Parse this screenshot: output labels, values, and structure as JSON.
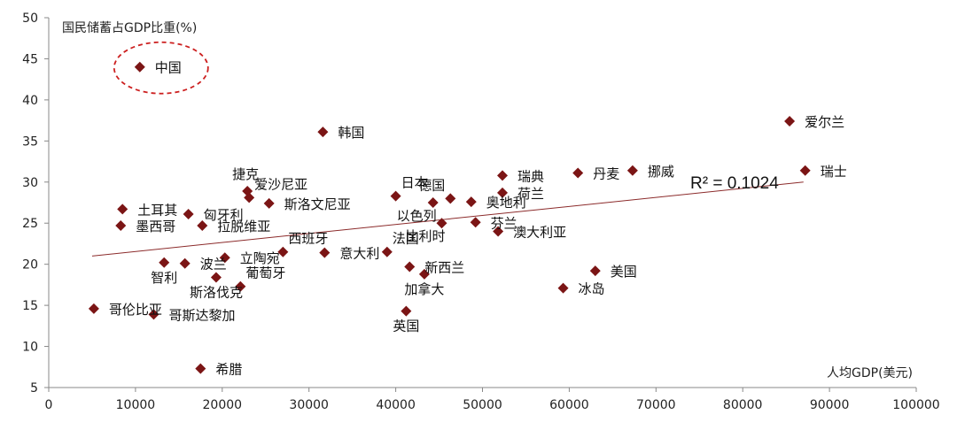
{
  "chart_data": {
    "type": "scatter",
    "title": "",
    "xlabel": "人均GDP(美元)",
    "ylabel": "国民储蓄占GDP比重(%)",
    "xlim": [
      0,
      100000
    ],
    "ylim": [
      5,
      50
    ],
    "x_ticks": [
      0,
      10000,
      20000,
      30000,
      40000,
      50000,
      60000,
      70000,
      80000,
      90000,
      100000
    ],
    "y_ticks": [
      5,
      10,
      15,
      20,
      25,
      30,
      35,
      40,
      45,
      50
    ],
    "grid": false,
    "marker": "diamond",
    "marker_color": "#7b1515",
    "trendline": {
      "type": "linear",
      "from": [
        5000,
        21
      ],
      "to": [
        87000,
        30
      ],
      "color": "#8b2a2a"
    },
    "r_squared_label": "R² = 0.1024",
    "highlight": {
      "point": "中国",
      "style": "dashed-ellipse",
      "color": "#cc1f1f"
    },
    "points": [
      {
        "name": "中国",
        "x": 10500,
        "y": 44.0,
        "label_pos": "right"
      },
      {
        "name": "韩国",
        "x": 31600,
        "y": 36.1,
        "label_pos": "right"
      },
      {
        "name": "爱尔兰",
        "x": 85400,
        "y": 37.4,
        "label_pos": "right"
      },
      {
        "name": "瑞士",
        "x": 87200,
        "y": 31.4,
        "label_pos": "right"
      },
      {
        "name": "挪威",
        "x": 67300,
        "y": 31.4,
        "label_pos": "right"
      },
      {
        "name": "丹麦",
        "x": 61000,
        "y": 31.1,
        "label_pos": "right"
      },
      {
        "name": "瑞典",
        "x": 52300,
        "y": 30.8,
        "label_pos": "right"
      },
      {
        "name": "荷兰",
        "x": 52300,
        "y": 28.7,
        "label_pos": "right"
      },
      {
        "name": "日本",
        "x": 40000,
        "y": 28.3,
        "label_pos": "above-right"
      },
      {
        "name": "德国",
        "x": 46300,
        "y": 28.0,
        "label_pos": "above-left"
      },
      {
        "name": "奥地利",
        "x": 48700,
        "y": 27.6,
        "label_pos": "right"
      },
      {
        "name": "以色列",
        "x": 44300,
        "y": 27.5,
        "label_pos": "below-left"
      },
      {
        "name": "芬兰",
        "x": 49200,
        "y": 25.1,
        "label_pos": "right"
      },
      {
        "name": "比利时",
        "x": 45300,
        "y": 25.0,
        "label_pos": "below-left"
      },
      {
        "name": "澳大利亚",
        "x": 51800,
        "y": 24.0,
        "label_pos": "right"
      },
      {
        "name": "美国",
        "x": 63000,
        "y": 19.2,
        "label_pos": "right"
      },
      {
        "name": "冰岛",
        "x": 59300,
        "y": 17.1,
        "label_pos": "right"
      },
      {
        "name": "法国",
        "x": 39000,
        "y": 21.5,
        "label_pos": "above-right"
      },
      {
        "name": "新西兰",
        "x": 41600,
        "y": 19.7,
        "label_pos": "right"
      },
      {
        "name": "加拿大",
        "x": 43300,
        "y": 18.8,
        "label_pos": "below"
      },
      {
        "name": "英国",
        "x": 41200,
        "y": 14.3,
        "label_pos": "below"
      },
      {
        "name": "意大利",
        "x": 31800,
        "y": 21.4,
        "label_pos": "right"
      },
      {
        "name": "西班牙",
        "x": 27000,
        "y": 21.5,
        "label_pos": "above-right"
      },
      {
        "name": "立陶宛",
        "x": 20300,
        "y": 20.8,
        "label_pos": "right"
      },
      {
        "name": "葡萄牙",
        "x": 22100,
        "y": 17.3,
        "label_pos": "above-right"
      },
      {
        "name": "斯洛伐克",
        "x": 19300,
        "y": 18.4,
        "label_pos": "below"
      },
      {
        "name": "波兰",
        "x": 15700,
        "y": 20.1,
        "label_pos": "right"
      },
      {
        "name": "智利",
        "x": 13300,
        "y": 20.2,
        "label_pos": "below"
      },
      {
        "name": "捷克",
        "x": 22900,
        "y": 28.9,
        "label_pos": "above"
      },
      {
        "name": "爱沙尼亚",
        "x": 23100,
        "y": 28.1,
        "label_pos": "above-right"
      },
      {
        "name": "斯洛文尼亚",
        "x": 25400,
        "y": 27.4,
        "label_pos": "right"
      },
      {
        "name": "匈牙利",
        "x": 16100,
        "y": 26.1,
        "label_pos": "right"
      },
      {
        "name": "拉脱维亚",
        "x": 17700,
        "y": 24.7,
        "label_pos": "right"
      },
      {
        "name": "土耳其",
        "x": 8500,
        "y": 26.7,
        "label_pos": "right"
      },
      {
        "name": "墨西哥",
        "x": 8300,
        "y": 24.7,
        "label_pos": "right"
      },
      {
        "name": "哥伦比亚",
        "x": 5200,
        "y": 14.6,
        "label_pos": "right"
      },
      {
        "name": "哥斯达黎加",
        "x": 12100,
        "y": 13.9,
        "label_pos": "right"
      },
      {
        "name": "希腊",
        "x": 17500,
        "y": 7.3,
        "label_pos": "right"
      }
    ]
  }
}
